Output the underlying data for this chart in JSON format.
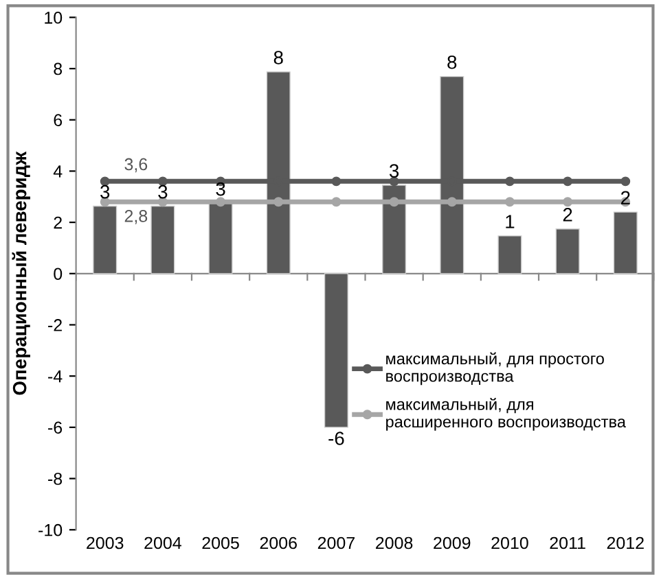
{
  "chart_data": {
    "type": "bar",
    "ylabel": "Операционный леверидж",
    "categories": [
      "2003",
      "2004",
      "2005",
      "2006",
      "2007",
      "2008",
      "2009",
      "2010",
      "2011",
      "2012"
    ],
    "ylim": [
      -10,
      10
    ],
    "yticks": [
      -10,
      -8,
      -6,
      -4,
      -2,
      0,
      2,
      4,
      6,
      8,
      10
    ],
    "legend": "right",
    "marker": "circle",
    "series": [
      {
        "color": "#595959",
        "values": [
          2.63,
          2.63,
          2.74,
          7.87,
          -6.0,
          3.45,
          7.69,
          1.47,
          1.74,
          2.4
        ],
        "value_labels": [
          "3",
          "3",
          "3",
          "8",
          "-6",
          "3",
          "8",
          "1",
          "2",
          "2"
        ]
      },
      {
        "type": "line",
        "name": "максимальный, для простого воспроизводства",
        "color": "#595959",
        "values": [
          3.6,
          3.6,
          3.6,
          3.6,
          3.6,
          3.6,
          3.6,
          3.6,
          3.6,
          3.6
        ],
        "value_labels": [
          "3,6",
          null,
          null,
          null,
          null,
          null,
          null,
          null,
          null,
          null
        ]
      },
      {
        "type": "line",
        "name": "максимальный, для расширенного воспроизводства",
        "color": "#a6a6a6",
        "values": [
          2.8,
          2.8,
          2.8,
          2.8,
          2.8,
          2.8,
          2.8,
          2.8,
          2.8,
          2.8
        ],
        "value_labels": [
          "2,8",
          null,
          null,
          null,
          null,
          null,
          null,
          null,
          null,
          null
        ]
      }
    ]
  }
}
